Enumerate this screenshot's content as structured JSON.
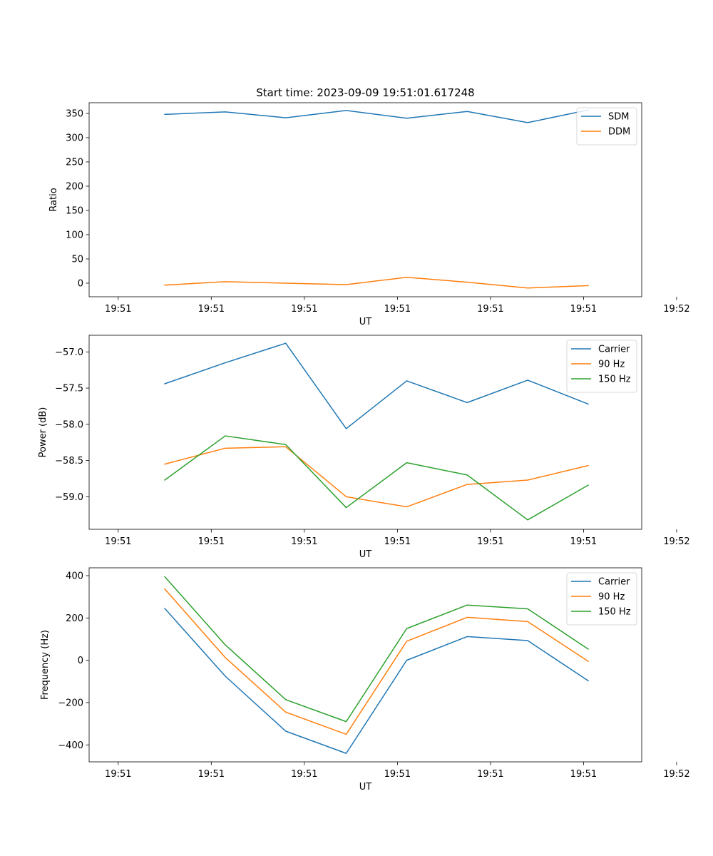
{
  "figure": {
    "background": "#ffffff"
  },
  "chart_data": [
    {
      "type": "line",
      "title": "Start time: 2023-09-09 19:51:01.617248",
      "xlabel": "UT",
      "ylabel": "Ratio",
      "xlim": [
        -0.25,
        4.5
      ],
      "ylim": [
        -28,
        372
      ],
      "x_ticks": [
        0,
        0.8,
        1.6,
        2.4,
        3.2,
        4.0,
        4.8
      ],
      "x_tick_labels": [
        "19:51",
        "19:51",
        "19:51",
        "19:51",
        "19:51",
        "19:51",
        "19:52"
      ],
      "y_ticks": [
        0,
        50,
        100,
        150,
        200,
        250,
        300,
        350
      ],
      "y_tick_labels": [
        "0",
        "50",
        "100",
        "150",
        "200",
        "250",
        "300",
        "350"
      ],
      "legend": "top-right",
      "x": [
        0.4,
        0.92,
        1.44,
        1.96,
        2.48,
        3.0,
        3.52,
        4.04
      ],
      "series": [
        {
          "name": "SDM",
          "color": "#1f77b4",
          "values": [
            348,
            353,
            341,
            356,
            340,
            354,
            331,
            357
          ]
        },
        {
          "name": "DDM",
          "color": "#ff7f0e",
          "values": [
            -4,
            3,
            0,
            -3,
            12,
            2,
            -10,
            -5
          ]
        }
      ]
    },
    {
      "type": "line",
      "title": "",
      "xlabel": "UT",
      "ylabel": "Power (dB)",
      "xlim": [
        -0.25,
        4.5
      ],
      "ylim": [
        -59.45,
        -56.77
      ],
      "x_ticks": [
        0,
        0.8,
        1.6,
        2.4,
        3.2,
        4.0,
        4.8
      ],
      "x_tick_labels": [
        "19:51",
        "19:51",
        "19:51",
        "19:51",
        "19:51",
        "19:51",
        "19:52"
      ],
      "y_ticks": [
        -59.0,
        -58.5,
        -58.0,
        -57.5,
        -57.0
      ],
      "y_tick_labels": [
        "−59.0",
        "−58.5",
        "−58.0",
        "−57.5",
        "−57.0"
      ],
      "legend": "top-right",
      "x": [
        0.4,
        0.92,
        1.44,
        1.96,
        2.48,
        3.0,
        3.52,
        4.04
      ],
      "series": [
        {
          "name": "Carrier",
          "color": "#1f77b4",
          "values": [
            -57.44,
            -57.15,
            -56.88,
            -58.06,
            -57.4,
            -57.7,
            -57.39,
            -57.72
          ]
        },
        {
          "name": "90 Hz",
          "color": "#ff7f0e",
          "values": [
            -58.55,
            -58.33,
            -58.31,
            -59.0,
            -59.14,
            -58.83,
            -58.77,
            -58.57
          ]
        },
        {
          "name": "150 Hz",
          "color": "#2ca02c",
          "values": [
            -58.77,
            -58.16,
            -58.28,
            -59.15,
            -58.53,
            -58.7,
            -59.32,
            -58.84
          ]
        }
      ]
    },
    {
      "type": "line",
      "title": "",
      "xlabel": "UT",
      "ylabel": "Frequency (Hz)",
      "xlim": [
        -0.25,
        4.5
      ],
      "ylim": [
        -480,
        437
      ],
      "x_ticks": [
        0,
        0.8,
        1.6,
        2.4,
        3.2,
        4.0,
        4.8
      ],
      "x_tick_labels": [
        "19:51",
        "19:51",
        "19:51",
        "19:51",
        "19:51",
        "19:51",
        "19:52"
      ],
      "y_ticks": [
        -400,
        -200,
        0,
        200,
        400
      ],
      "y_tick_labels": [
        "−400",
        "−200",
        "0",
        "200",
        "400"
      ],
      "legend": "top-right",
      "x": [
        0.4,
        0.92,
        1.44,
        1.96,
        2.48,
        3.0,
        3.52,
        4.04
      ],
      "series": [
        {
          "name": "Carrier",
          "color": "#1f77b4",
          "values": [
            245,
            -75,
            -335,
            -440,
            0,
            112,
            93,
            -97
          ]
        },
        {
          "name": "90 Hz",
          "color": "#ff7f0e",
          "values": [
            337,
            13,
            -245,
            -350,
            90,
            203,
            183,
            -5
          ]
        },
        {
          "name": "150 Hz",
          "color": "#2ca02c",
          "values": [
            395,
            73,
            -186,
            -290,
            150,
            261,
            243,
            53
          ]
        }
      ]
    }
  ]
}
